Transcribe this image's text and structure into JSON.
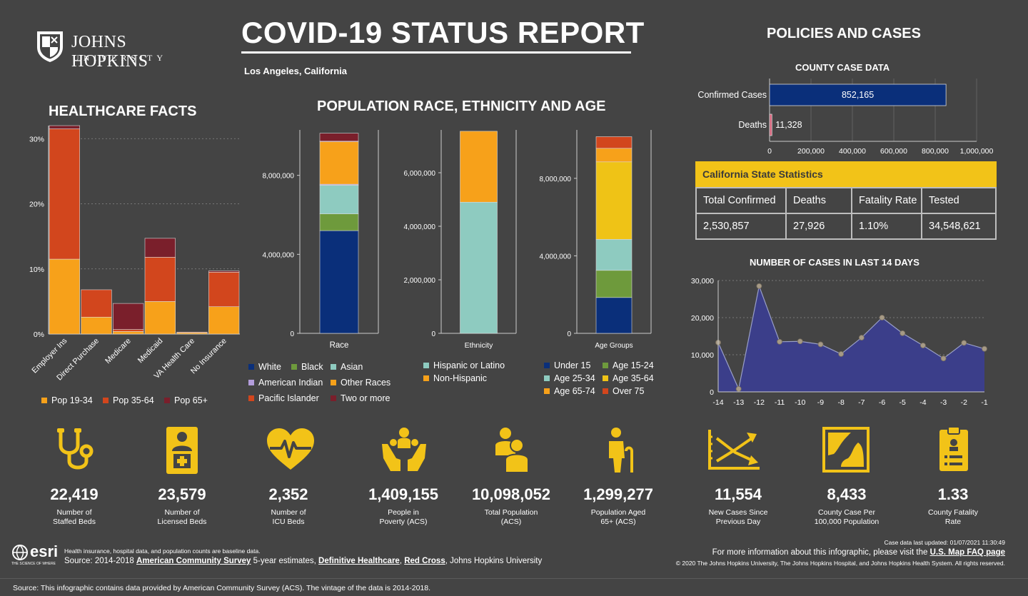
{
  "header": {
    "logo_name": "JOHNS HOPKINS",
    "logo_sub": "UNIVERSITY",
    "title": "COVID-19 STATUS REPORT",
    "location": "Los Angeles, California"
  },
  "healthcare": {
    "title": "HEALTHCARE FACTS",
    "chart_data": {
      "type": "bar",
      "stacked": true,
      "categories": [
        "Employer Ins",
        "Direct Purchase",
        "Medicare",
        "Medicaid",
        "VA Health Care",
        "No Insurance"
      ],
      "series": [
        {
          "name": "Pop 19-34",
          "color": "#f7a11a",
          "values": [
            11.5,
            2.6,
            0.4,
            5.0,
            0.2,
            4.2
          ]
        },
        {
          "name": "Pop 35-64",
          "color": "#d2461d",
          "values": [
            20.0,
            4.2,
            0.3,
            6.8,
            0.1,
            5.3
          ]
        },
        {
          "name": "Pop 65+",
          "color": "#7a1f2b",
          "values": [
            0.5,
            0.0,
            4.0,
            2.9,
            0.0,
            0.2
          ]
        }
      ],
      "yticks": [
        "0%",
        "10%",
        "20%",
        "30%"
      ],
      "ylim": [
        0,
        32
      ]
    }
  },
  "population": {
    "title": "POPULATION RACE, ETHNICITY AND AGE",
    "race": {
      "type": "bar",
      "xlabel": "Race",
      "yticks": [
        "0",
        "4,000,000",
        "8,000,000"
      ],
      "ylim": [
        0,
        10300000
      ],
      "segments": [
        {
          "name": "White",
          "color": "#0a2f7a",
          "value": 5200000
        },
        {
          "name": "Black",
          "color": "#6e9a3c",
          "value": 850000
        },
        {
          "name": "Asian",
          "color": "#8ecbc0",
          "value": 1450000
        },
        {
          "name": "American Indian",
          "color": "#b39ddb",
          "value": 50000
        },
        {
          "name": "Other Races",
          "color": "#f7a11a",
          "value": 2150000
        },
        {
          "name": "Pacific Islander",
          "color": "#d2461d",
          "value": 30000
        },
        {
          "name": "Two or more",
          "color": "#7a1f2b",
          "value": 400000
        }
      ]
    },
    "ethnicity": {
      "type": "bar",
      "xlabel": "Ethnicity",
      "yticks": [
        "0",
        "2,000,000",
        "4,000,000",
        "6,000,000"
      ],
      "ylim": [
        0,
        7600000
      ],
      "segments": [
        {
          "name": "Hispanic or Latino",
          "color": "#8ecbc0",
          "value": 4900000
        },
        {
          "name": "Non-Hispanic",
          "color": "#f7a11a",
          "value": 2650000
        }
      ]
    },
    "age": {
      "type": "bar",
      "xlabel": "Age Groups",
      "yticks": [
        "0",
        "4,000,000",
        "8,000,000"
      ],
      "ylim": [
        0,
        10500000
      ],
      "segments": [
        {
          "name": "Under 15",
          "color": "#0a2f7a",
          "value": 1850000
        },
        {
          "name": "Age 15-24",
          "color": "#6e9a3c",
          "value": 1400000
        },
        {
          "name": "Age 25-34",
          "color": "#8ecbc0",
          "value": 1600000
        },
        {
          "name": "Age 35-64",
          "color": "#efc316",
          "value": 4000000
        },
        {
          "name": "Age 65-74",
          "color": "#f7a11a",
          "value": 700000
        },
        {
          "name": "Over 75",
          "color": "#d2461d",
          "value": 600000
        }
      ]
    }
  },
  "policies": {
    "title": "POLICIES AND CASES",
    "county_title": "COUNTY CASE DATA",
    "county_chart": {
      "type": "bar",
      "orientation": "horizontal",
      "categories": [
        "Confirmed Cases",
        "Deaths"
      ],
      "values": [
        852165,
        11328
      ],
      "value_labels": [
        "852,165",
        "11,328"
      ],
      "colors": [
        "#0a2f7a",
        "#d8627a"
      ],
      "xticks": [
        "0",
        "200,000",
        "400,000",
        "600,000",
        "800,000",
        "1,000,000"
      ],
      "xlim": [
        0,
        1000000
      ]
    },
    "state": {
      "title": "California State Statistics",
      "headers": [
        "Total Confirmed",
        "Deaths",
        "Fatality Rate",
        "Tested"
      ],
      "values": [
        "2,530,857",
        "27,926",
        "1.10%",
        "34,548,621"
      ]
    },
    "cases14_title": "NUMBER OF CASES IN LAST 14 DAYS",
    "cases14_chart": {
      "type": "area",
      "x": [
        -14,
        -13,
        -12,
        -11,
        -10,
        -9,
        -8,
        -7,
        -6,
        -5,
        -4,
        -3,
        -2,
        -1
      ],
      "xticks": [
        "-14",
        "-13",
        "-12",
        "-11",
        "-10",
        "-9",
        "-8",
        "-7",
        "-6",
        "-5",
        "-4",
        "-3",
        "-2",
        "-1"
      ],
      "values": [
        13300,
        800,
        28500,
        13500,
        13600,
        12800,
        10200,
        14600,
        20000,
        15800,
        12500,
        9000,
        13200,
        11600
      ],
      "yticks": [
        "0",
        "10,000",
        "20,000",
        "30,000"
      ],
      "ylim": [
        0,
        30000
      ],
      "color": "#3b3e8a"
    }
  },
  "kpis": [
    {
      "value": "22,419",
      "label": "Number of\nStaffed Beds",
      "icon": "stethoscope-icon"
    },
    {
      "value": "23,579",
      "label": "Number of\nLicensed Beds",
      "icon": "licensed-bed-icon"
    },
    {
      "value": "2,352",
      "label": "Number of\nICU Beds",
      "icon": "heartbeat-icon"
    },
    {
      "value": "1,409,155",
      "label": "People in\nPoverty (ACS)",
      "icon": "hands-people-icon"
    },
    {
      "value": "10,098,052",
      "label": "Total Population\n(ACS)",
      "icon": "population-icon"
    },
    {
      "value": "1,299,277",
      "label": "Population Aged\n65+ (ACS)",
      "icon": "elderly-icon"
    },
    {
      "value": "11,554",
      "label": "New Cases Since\nPrevious Day",
      "icon": "trend-chart-icon"
    },
    {
      "value": "8,433",
      "label": "County Case Per\n100,000 Population",
      "icon": "county-map-icon"
    },
    {
      "value": "1.33",
      "label": "County Fatality\nRate",
      "icon": "clipboard-icon"
    }
  ],
  "footer": {
    "esri": "esri",
    "esri_tag": "THE SCIENCE OF WHERE",
    "note": "Health insurance, hospital data, and population counts are baseline data.",
    "source_prefix": "Source: 2014-2018 ",
    "source_link1": "American Community Survey",
    "source_mid1": " 5-year estimates, ",
    "source_link2": "Definitive Healthcare",
    "source_mid2": ", ",
    "source_link3": "Red Cross",
    "source_suffix": ", Johns Hopkins University",
    "updated": "Case data last updated: 01/07/2021 11:30:49",
    "more_info_prefix": "For more information about this infographic, please visit the ",
    "more_info_link": "U.S. Map FAQ page",
    "copyright": "© 2020 The Johns Hopkins University, The Johns Hopkins Hospital, and Johns Hopkins Health System. All rights reserved.",
    "bottom_source": "Source: This infographic contains data provided by American Community Survey (ACS). The vintage of the data is 2014-2018."
  }
}
